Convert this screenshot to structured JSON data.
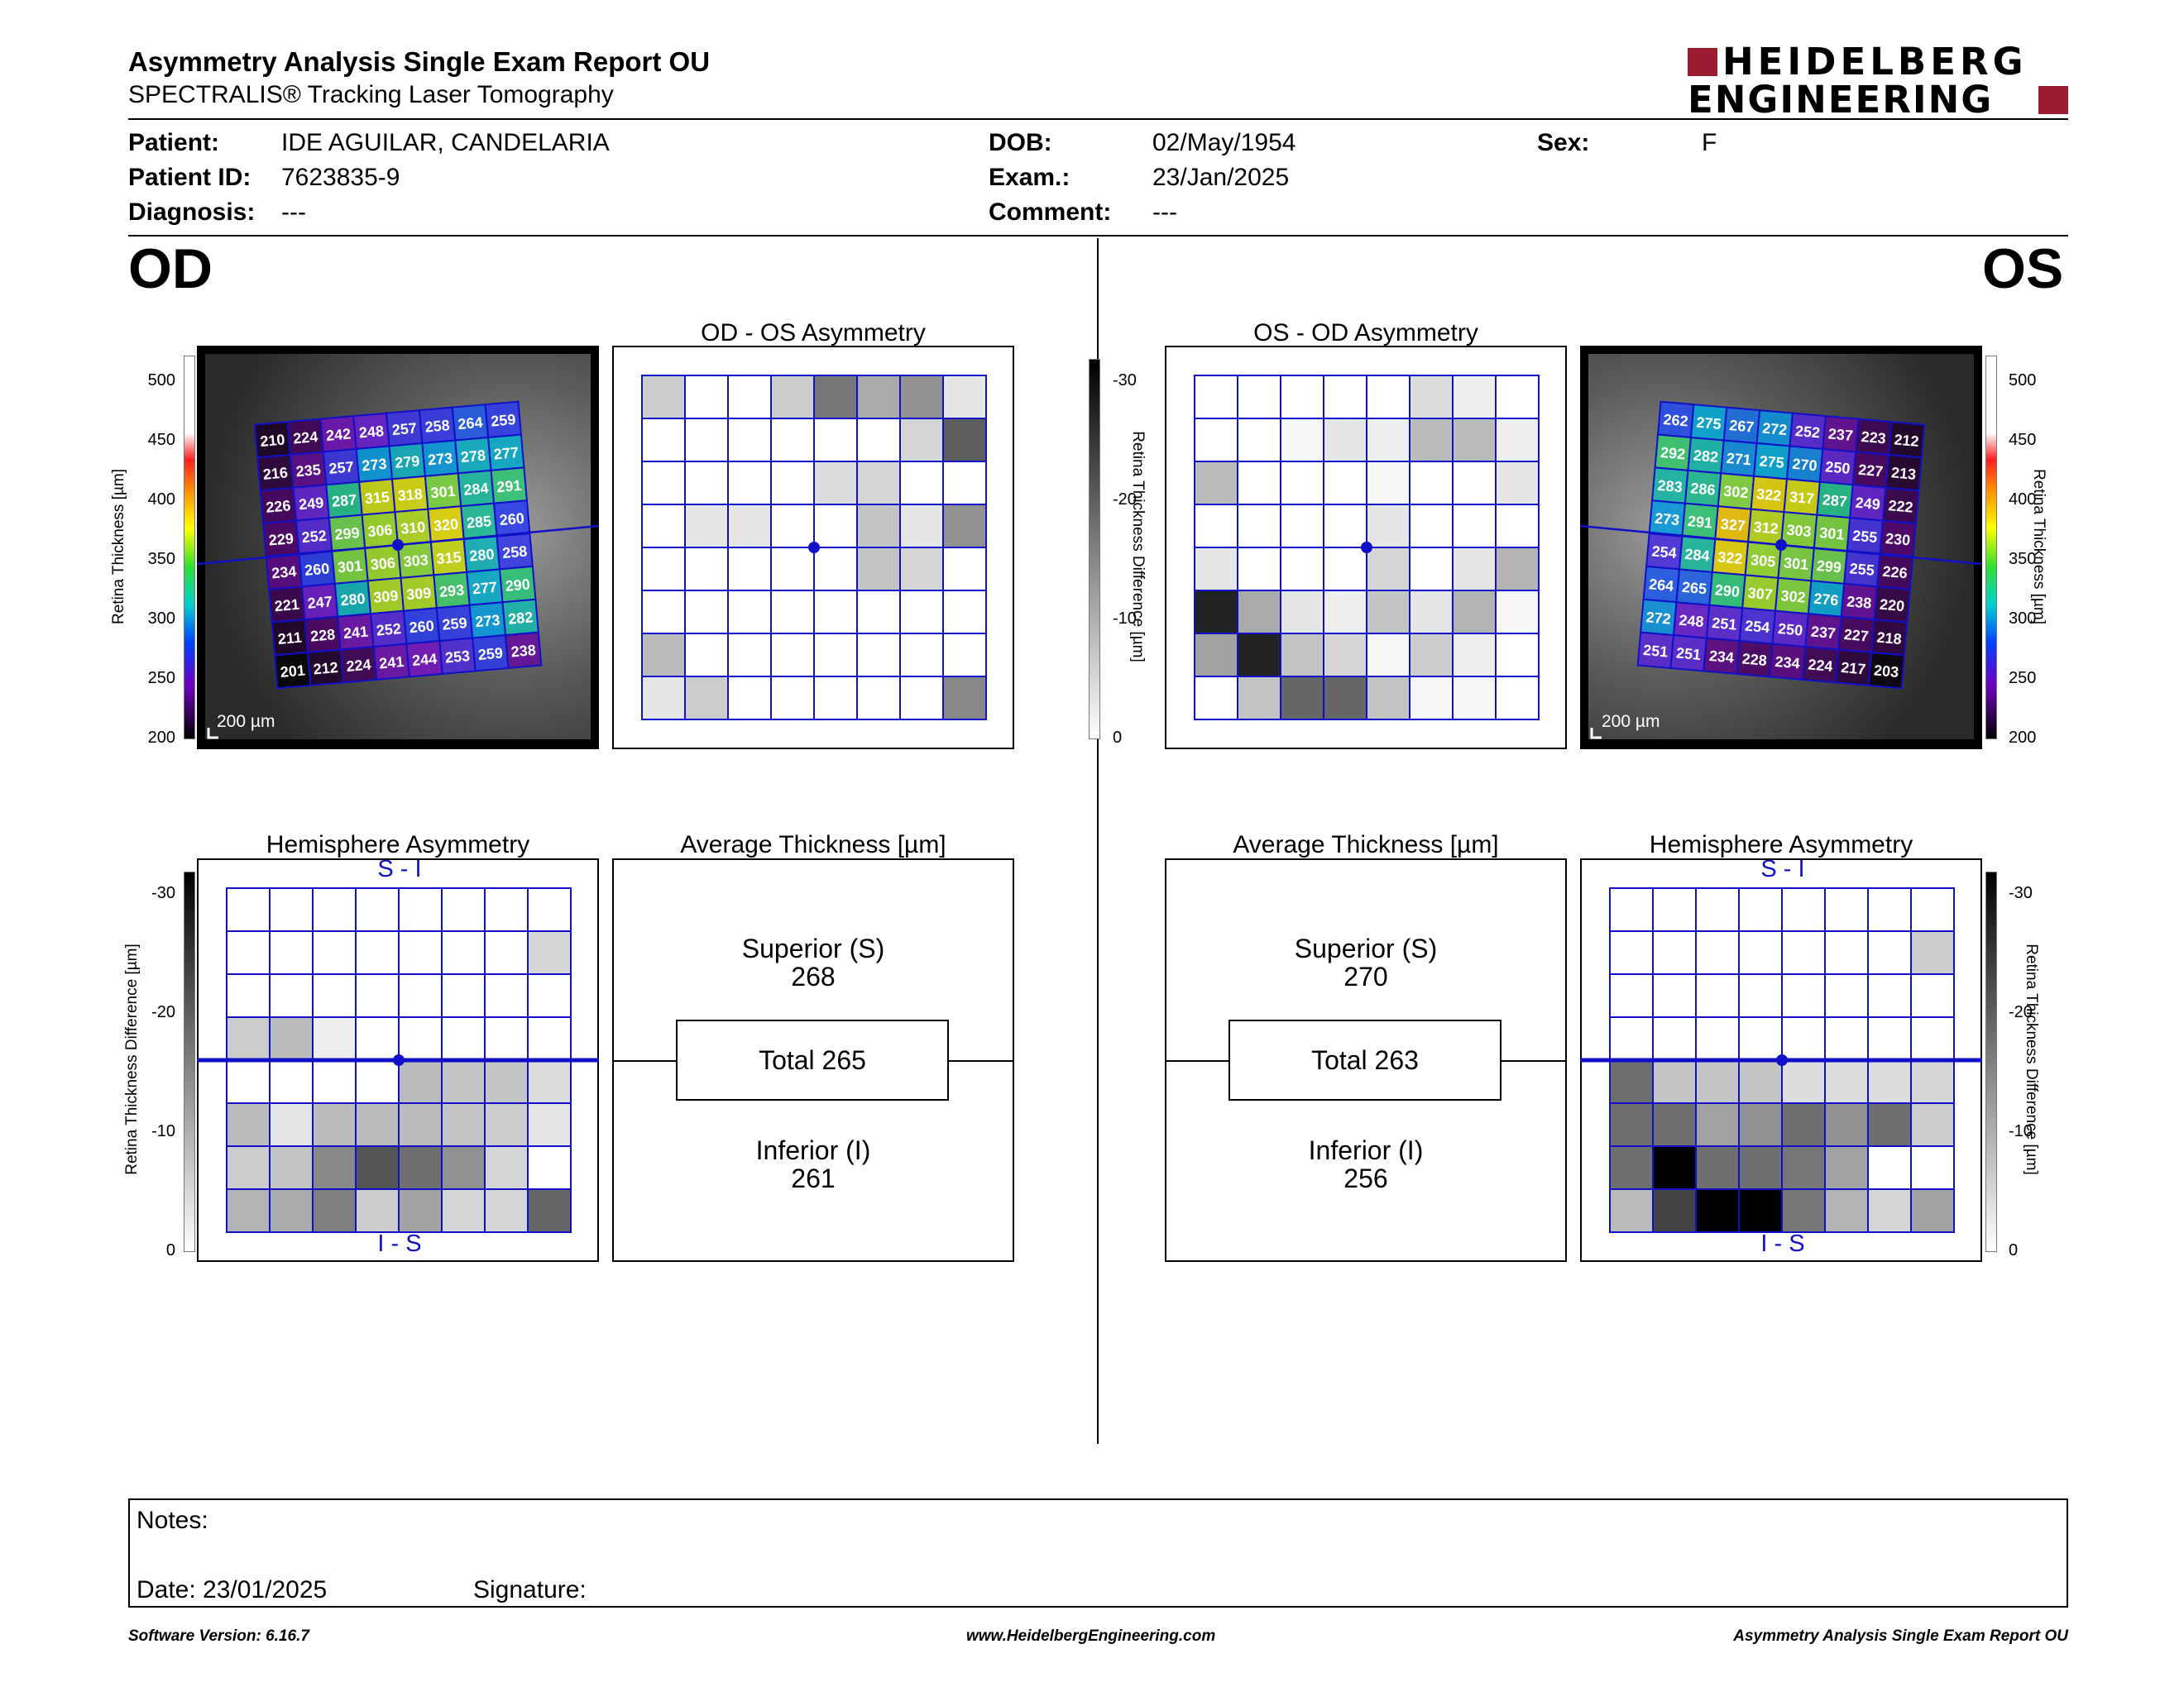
{
  "header": {
    "title": "Asymmetry Analysis Single Exam Report OU",
    "subtitle": "SPECTRALIS® Tracking Laser Tomography",
    "logo_top": "HEIDELBERG",
    "logo_bottom": "ENGINEERING"
  },
  "patient": {
    "patient_label": "Patient:",
    "patient_value": "IDE AGUILAR, CANDELARIA",
    "id_label": "Patient ID:",
    "id_value": "7623835-9",
    "diag_label": "Diagnosis:",
    "diag_value": "---",
    "dob_label": "DOB:",
    "dob_value": "02/May/1954",
    "exam_label": "Exam.:",
    "exam_value": "23/Jan/2025",
    "comment_label": "Comment:",
    "comment_value": "---",
    "sex_label": "Sex:",
    "sex_value": "F"
  },
  "eyes": {
    "od": "OD",
    "os": "OS"
  },
  "panels": {
    "od_os_title": "OD - OS Asymmetry",
    "os_od_title": "OS - OD Asymmetry",
    "hemi_title": "Hemisphere Asymmetry",
    "avg_title": "Average Thickness [µm]",
    "hemi_top": "S - I",
    "hemi_bottom": "I - S",
    "scale_label": "200 µm"
  },
  "axes": {
    "thickness_label": "Retina Thickness [µm]",
    "thickness_ticks": [
      "500",
      "450",
      "400",
      "350",
      "300",
      "250",
      "200"
    ],
    "diff_label": "Retina Thickness Difference [µm]",
    "diff_ticks": [
      "-30",
      "-20",
      "-10",
      "0"
    ]
  },
  "od": {
    "thickness_grid": [
      [
        210,
        224,
        242,
        248,
        257,
        258,
        264,
        259
      ],
      [
        216,
        235,
        257,
        273,
        279,
        273,
        278,
        277
      ],
      [
        226,
        249,
        287,
        315,
        318,
        301,
        284,
        291
      ],
      [
        229,
        252,
        299,
        306,
        310,
        320,
        285,
        260
      ],
      [
        234,
        260,
        301,
        306,
        303,
        315,
        280,
        258
      ],
      [
        221,
        247,
        280,
        309,
        309,
        293,
        277,
        290
      ],
      [
        211,
        228,
        241,
        252,
        260,
        259,
        273,
        282
      ],
      [
        201,
        212,
        224,
        241,
        244,
        253,
        259,
        238
      ]
    ],
    "asym_grid": [
      [
        6,
        0,
        0,
        6,
        16,
        10,
        13,
        3
      ],
      [
        0,
        0,
        0,
        0,
        0,
        0,
        5,
        19
      ],
      [
        0,
        0,
        0,
        0,
        4,
        5,
        0,
        0
      ],
      [
        0,
        3,
        3,
        0,
        0,
        7,
        3,
        13
      ],
      [
        0,
        0,
        0,
        0,
        0,
        7,
        5,
        0
      ],
      [
        0,
        0,
        0,
        0,
        0,
        0,
        0,
        0
      ],
      [
        8,
        0,
        0,
        0,
        0,
        0,
        0,
        0
      ],
      [
        3,
        6,
        0,
        0,
        0,
        0,
        0,
        14
      ]
    ],
    "hemi_grid": [
      [
        0,
        0,
        0,
        0,
        0,
        0,
        0,
        0
      ],
      [
        0,
        0,
        0,
        0,
        0,
        0,
        0,
        5
      ],
      [
        0,
        0,
        0,
        0,
        0,
        0,
        0,
        0
      ],
      [
        6,
        8,
        2,
        0,
        0,
        0,
        0,
        0
      ],
      [
        0,
        0,
        0,
        0,
        8,
        7,
        7,
        4
      ],
      [
        8,
        3,
        8,
        8,
        8,
        7,
        6,
        3
      ],
      [
        6,
        7,
        14,
        20,
        17,
        13,
        5,
        0
      ],
      [
        9,
        10,
        15,
        6,
        11,
        5,
        5,
        18
      ]
    ],
    "avg_superior_label": "Superior (S)",
    "avg_superior": "268",
    "avg_total": "Total 265",
    "avg_inferior_label": "Inferior (I)",
    "avg_inferior": "261"
  },
  "os": {
    "thickness_grid": [
      [
        262,
        275,
        267,
        272,
        252,
        237,
        223,
        212
      ],
      [
        292,
        282,
        271,
        275,
        270,
        250,
        227,
        213
      ],
      [
        283,
        286,
        302,
        322,
        317,
        287,
        249,
        222
      ],
      [
        273,
        291,
        327,
        312,
        303,
        301,
        255,
        230
      ],
      [
        254,
        284,
        322,
        305,
        301,
        299,
        255,
        226
      ],
      [
        264,
        265,
        290,
        307,
        302,
        276,
        238,
        220
      ],
      [
        272,
        248,
        251,
        254,
        250,
        237,
        227,
        218
      ],
      [
        251,
        251,
        234,
        228,
        234,
        224,
        217,
        203
      ]
    ],
    "asym_grid": [
      [
        0,
        0,
        0,
        0,
        0,
        4,
        2,
        0
      ],
      [
        0,
        0,
        1,
        3,
        2,
        8,
        8,
        2
      ],
      [
        8,
        0,
        0,
        0,
        1,
        0,
        0,
        3
      ],
      [
        0,
        0,
        0,
        0,
        3,
        0,
        0,
        0
      ],
      [
        3,
        0,
        0,
        0,
        5,
        0,
        3,
        9
      ],
      [
        26,
        10,
        3,
        2,
        7,
        3,
        9,
        1
      ],
      [
        11,
        26,
        7,
        5,
        1,
        6,
        2,
        0
      ],
      [
        0,
        7,
        18,
        18,
        7,
        1,
        1,
        0
      ]
    ],
    "hemi_grid": [
      [
        0,
        0,
        0,
        0,
        0,
        0,
        0,
        0
      ],
      [
        0,
        0,
        0,
        0,
        0,
        0,
        0,
        6
      ],
      [
        0,
        0,
        0,
        0,
        0,
        0,
        0,
        0
      ],
      [
        0,
        0,
        0,
        0,
        0,
        0,
        0,
        0
      ],
      [
        17,
        7,
        7,
        7,
        4,
        4,
        4,
        5
      ],
      [
        17,
        17,
        11,
        13,
        17,
        13,
        17,
        6
      ],
      [
        17,
        30,
        17,
        17,
        16,
        11,
        0,
        0
      ],
      [
        8,
        22,
        30,
        30,
        16,
        9,
        5,
        11
      ]
    ],
    "avg_superior_label": "Superior (S)",
    "avg_superior": "270",
    "avg_total": "Total 263",
    "avg_inferior_label": "Inferior (I)",
    "avg_inferior": "256"
  },
  "notes": {
    "notes_label": "Notes:",
    "date_label": "Date: 23/01/2025",
    "signature_label": "Signature:"
  },
  "footer": {
    "software": "Software Version: 6.16.7",
    "website": "www.HeidelbergEngineering.com",
    "report": "Asymmetry Analysis Single Exam Report OU"
  },
  "colors": {
    "grid_line": "#1010c8",
    "logo_red": "#9b1b30",
    "text": "#000000"
  }
}
